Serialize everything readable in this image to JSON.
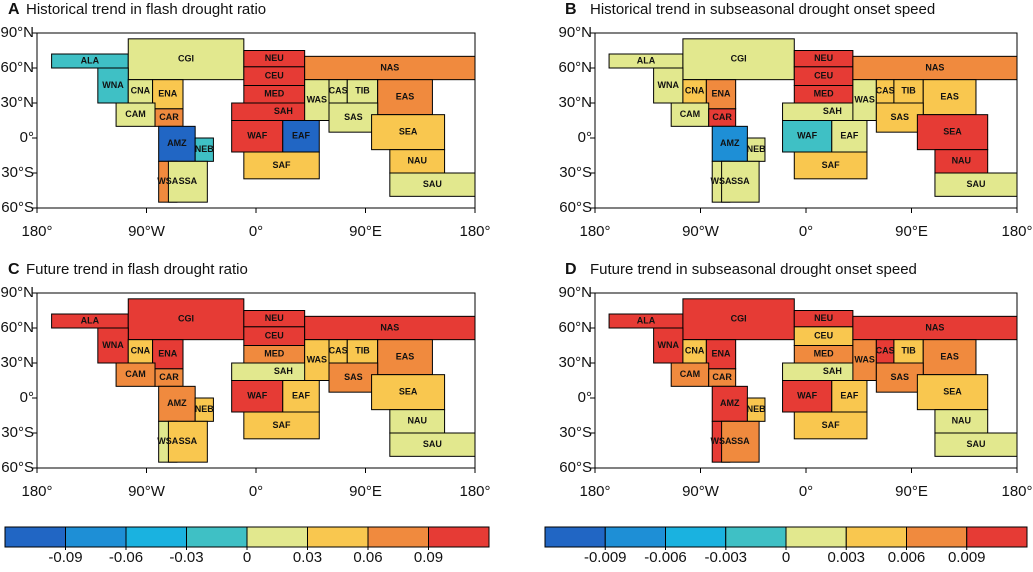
{
  "maps": {
    "xlim": [
      -180,
      180
    ],
    "ylim": [
      -60,
      90
    ],
    "xticks": [
      {
        "value": -180,
        "label": "180°"
      },
      {
        "value": -90,
        "label": "90°W"
      },
      {
        "value": 0,
        "label": "0°"
      },
      {
        "value": 90,
        "label": "90°E"
      },
      {
        "value": 180,
        "label": "180°"
      }
    ],
    "yticks": [
      {
        "value": 90,
        "label": "90°N"
      },
      {
        "value": 60,
        "label": "60°N"
      },
      {
        "value": 30,
        "label": "30°N"
      },
      {
        "value": 0,
        "label": "0°"
      },
      {
        "value": -30,
        "label": "30°S"
      },
      {
        "value": -60,
        "label": "60°S"
      }
    ],
    "regions": [
      "ALA",
      "CGI",
      "WNA",
      "CNA",
      "ENA",
      "CAM",
      "CAR",
      "AMZ",
      "NEB",
      "WSA",
      "SSA",
      "NEU",
      "CEU",
      "MED",
      "SAH",
      "WAF",
      "EAF",
      "SAF",
      "NAS",
      "WAS",
      "CAS",
      "TIB",
      "EAS",
      "SAS",
      "SEA",
      "NAU",
      "SAU"
    ],
    "panels": [
      {
        "letter": "A",
        "title": "Historical trend in flash drought ratio",
        "colorbar": 0,
        "region_colors": [
          "#3fc0c5",
          "#e2e88e",
          "#3fc0c5",
          "#e2e88e",
          "#f9c74f",
          "#e2e88e",
          "#f08a3e",
          "#2166c4",
          "#3fc0c5",
          "#f08a3e",
          "#e2e88e",
          "#e63b35",
          "#e63b35",
          "#e63b35",
          "#e63b35",
          "#e63b35",
          "#2166c4",
          "#f9c74f",
          "#f08a3e",
          "#e2e88e",
          "#e2e88e",
          "#e2e88e",
          "#f08a3e",
          "#e2e88e",
          "#f9c74f",
          "#f9c74f",
          "#e2e88e"
        ]
      },
      {
        "letter": "B",
        "title": "Historical trend in subseasonal drought onset speed",
        "colorbar": 1,
        "region_colors": [
          "#e2e88e",
          "#e2e88e",
          "#e2e88e",
          "#f9c74f",
          "#f08a3e",
          "#e2e88e",
          "#e63b35",
          "#1e8fd6",
          "#e2e88e",
          "#e2e88e",
          "#e2e88e",
          "#e63b35",
          "#e63b35",
          "#e63b35",
          "#e2e88e",
          "#3fc0c5",
          "#e2e88e",
          "#f9c74f",
          "#f08a3e",
          "#e2e88e",
          "#f9c74f",
          "#f9c74f",
          "#f9c74f",
          "#f9c74f",
          "#e63b35",
          "#e63b35",
          "#e2e88e"
        ]
      },
      {
        "letter": "C",
        "title": "Future trend in flash drought ratio",
        "colorbar": 0,
        "region_colors": [
          "#e63b35",
          "#e63b35",
          "#e63b35",
          "#f9c74f",
          "#e63b35",
          "#f08a3e",
          "#f08a3e",
          "#f08a3e",
          "#f9c74f",
          "#e2e88e",
          "#f9c74f",
          "#e63b35",
          "#e63b35",
          "#f08a3e",
          "#e2e88e",
          "#e63b35",
          "#f9c74f",
          "#f9c74f",
          "#e63b35",
          "#f9c74f",
          "#f9c74f",
          "#f9c74f",
          "#f08a3e",
          "#f08a3e",
          "#f9c74f",
          "#e2e88e",
          "#e2e88e"
        ]
      },
      {
        "letter": "D",
        "title": "Future trend in subseasonal drought onset speed",
        "colorbar": 1,
        "region_colors": [
          "#e63b35",
          "#e63b35",
          "#e63b35",
          "#f9c74f",
          "#e63b35",
          "#f08a3e",
          "#f08a3e",
          "#e63b35",
          "#f9c74f",
          "#e63b35",
          "#f08a3e",
          "#e63b35",
          "#f9c74f",
          "#f08a3e",
          "#e2e88e",
          "#e63b35",
          "#f9c74f",
          "#f9c74f",
          "#e63b35",
          "#f08a3e",
          "#e63b35",
          "#f9c74f",
          "#f08a3e",
          "#f08a3e",
          "#f9c74f",
          "#e2e88e",
          "#e2e88e"
        ]
      }
    ],
    "colorbars": [
      {
        "lim": [
          -0.12,
          0.12
        ],
        "ticks": [
          -0.09,
          -0.06,
          -0.03,
          0,
          0.03,
          0.06,
          0.09
        ],
        "colors": [
          "#2166c4",
          "#1e8fd6",
          "#1ab2e0",
          "#3fc0c5",
          "#e2e88e",
          "#f9c74f",
          "#f08a3e",
          "#e63b35"
        ]
      },
      {
        "lim": [
          -0.012,
          0.012
        ],
        "ticks": [
          -0.009,
          -0.006,
          -0.003,
          0,
          0.003,
          0.006,
          0.009
        ],
        "colors": [
          "#2166c4",
          "#1e8fd6",
          "#1ab2e0",
          "#3fc0c5",
          "#e2e88e",
          "#f9c74f",
          "#f08a3e",
          "#e63b35"
        ]
      }
    ]
  }
}
